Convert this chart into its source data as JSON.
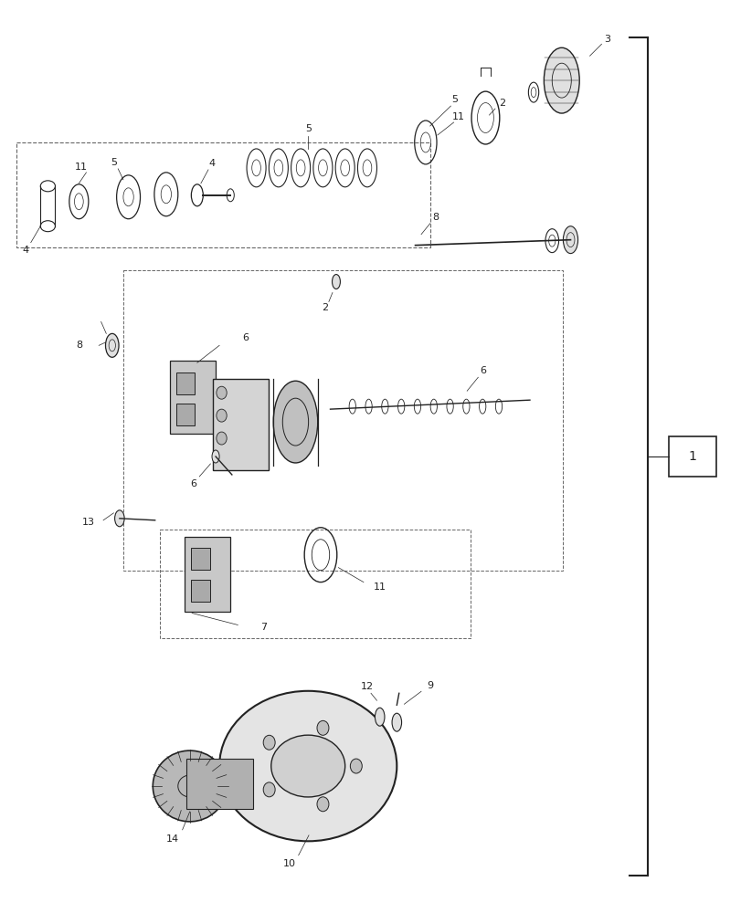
{
  "background_color": "#ffffff",
  "fig_width": 8.12,
  "fig_height": 10.0,
  "dpi": 100,
  "line_color": "#222222",
  "text_color": "#222222"
}
